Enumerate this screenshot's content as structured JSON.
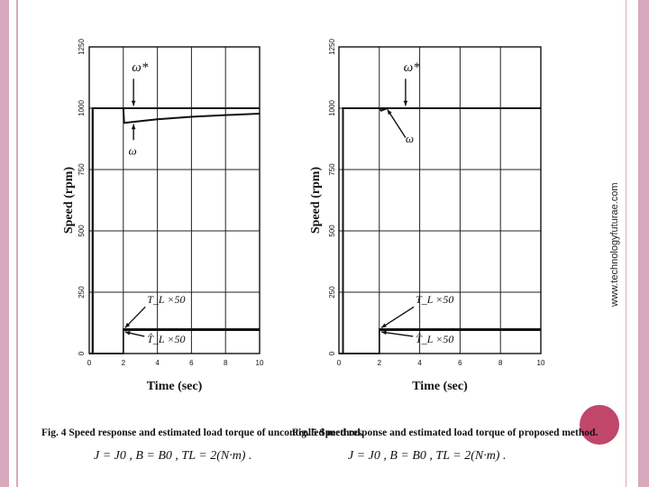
{
  "watermark": "www.technologyfuturae.com",
  "colors": {
    "side_bar": "#d8a9bd",
    "accent_circle": "#c0476a",
    "plot_line": "#111111"
  },
  "chart_data": [
    {
      "type": "line",
      "title": "",
      "caption": "Fig. 4 Speed response and estimated load torque of uncontrolled method.",
      "formula": "J = J0 , B = B0 , TL = 2(N·m) .",
      "xlabel": "Time (sec)",
      "ylabel": "Speed (rpm)",
      "xlim": [
        0,
        10
      ],
      "ylim": [
        0,
        1250
      ],
      "xticks": [
        "0",
        "2",
        "4",
        "6",
        "8",
        "10"
      ],
      "yticks": [
        "0",
        "250",
        "500",
        "750",
        "1000",
        "1250"
      ],
      "grid": true,
      "annotations": [
        "ω*",
        "ω",
        "T_L ×50",
        "T̂_L ×50"
      ],
      "series": [
        {
          "role": "reference ω*",
          "x": [
            0,
            0.2,
            0.2,
            2,
            10
          ],
          "y": [
            0,
            0,
            1000,
            1000,
            1000
          ]
        },
        {
          "role": "speed ω",
          "x": [
            0,
            0.2,
            0.2,
            2,
            2.05,
            4,
            6,
            8,
            10
          ],
          "y": [
            0,
            0,
            1000,
            1000,
            940,
            955,
            965,
            972,
            978
          ]
        },
        {
          "role": "load torque ×50",
          "x": [
            0,
            2,
            2,
            10
          ],
          "y": [
            0,
            0,
            100,
            100
          ]
        },
        {
          "role": "estimated load torque ×50",
          "x": [
            0,
            2,
            2,
            10
          ],
          "y": [
            0,
            0,
            95,
            95
          ]
        }
      ]
    },
    {
      "type": "line",
      "title": "",
      "caption": "Fig. 5 Speed response and estimated load torque of proposed method.",
      "formula": "J = J0 , B = B0 , TL = 2(N·m) .",
      "xlabel": "Time (sec)",
      "ylabel": "Speed (rpm)",
      "xlim": [
        0,
        10
      ],
      "ylim": [
        0,
        1250
      ],
      "xticks": [
        "0",
        "2",
        "4",
        "6",
        "8",
        "10"
      ],
      "yticks": [
        "0",
        "250",
        "500",
        "750",
        "1000",
        "1250"
      ],
      "grid": true,
      "annotations": [
        "ω*",
        "ω",
        "T_L ×50",
        "T̂_L ×50"
      ],
      "series": [
        {
          "role": "reference ω*",
          "x": [
            0,
            0.2,
            0.2,
            10
          ],
          "y": [
            0,
            0,
            1000,
            1000
          ]
        },
        {
          "role": "speed ω",
          "x": [
            0,
            0.2,
            0.2,
            2,
            2.1,
            2.4,
            10
          ],
          "y": [
            0,
            0,
            1000,
            1000,
            990,
            1000,
            1000
          ]
        },
        {
          "role": "load torque ×50",
          "x": [
            0,
            2,
            2,
            10
          ],
          "y": [
            0,
            0,
            100,
            100
          ]
        },
        {
          "role": "estimated load torque ×50",
          "x": [
            0,
            2,
            2,
            10
          ],
          "y": [
            0,
            0,
            95,
            95
          ]
        }
      ]
    }
  ]
}
